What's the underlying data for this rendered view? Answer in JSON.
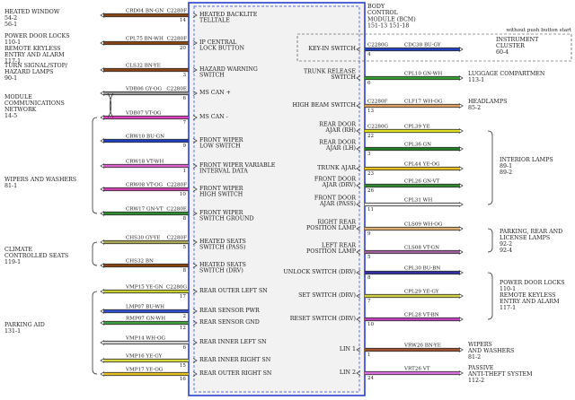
{
  "bcm": {
    "title_lines": [
      "BODY",
      "CONTROL",
      "MODULE (BCM)",
      "151-13  151-18"
    ],
    "note": "without push button start"
  },
  "left_modules": [
    {
      "id": "heated-window",
      "lines": [
        "HEATED WINDOW",
        "54-2",
        "56-1"
      ]
    },
    {
      "id": "power-door-locks-remote",
      "lines": [
        "POWER DOOR LOCKS",
        "110-1",
        "REMOTE KEYLESS",
        "ENTRY AND ALARM",
        "117-1"
      ]
    },
    {
      "id": "turn-signal",
      "lines": [
        "TURN SIGNAL/STOP/",
        "HAZARD LAMPS",
        "90-1"
      ]
    },
    {
      "id": "module-comm",
      "lines": [
        "MODULE",
        "COMMUNICATIONS",
        "NETWORK",
        "14-5"
      ]
    },
    {
      "id": "wipers-washers",
      "lines": [
        "WIPERS AND WASHERS",
        "81-1"
      ]
    },
    {
      "id": "climate-seats",
      "lines": [
        "CLIMATE",
        "CONTROLLED SEATS",
        "119-1"
      ]
    },
    {
      "id": "parking-aid",
      "lines": [
        "PARKING AID",
        "131-1"
      ]
    }
  ],
  "left_pins": [
    {
      "wire": "CRD04",
      "color": "BN-GN",
      "conn": "C2280F",
      "pin": "14",
      "label": [
        "HEATED BACKLITE",
        "TELLTALE"
      ],
      "hex": "#8B4513"
    },
    {
      "wire": "CPL75",
      "color": "BN-WH",
      "conn": "C2280F",
      "pin": "20",
      "label": [
        "IP CENTRAL",
        "LOCK BUTTON"
      ],
      "hex": "#8B4513"
    },
    {
      "wire": "CLS32",
      "color": "BN-YE",
      "conn": "",
      "pin": "3",
      "label": [
        "HAZARD WARNING",
        "SWITCH"
      ],
      "hex": "#8B4513"
    },
    {
      "wire": "VDB06",
      "color": "GY-OG",
      "conn": "C2280E",
      "pin": "6",
      "label": [
        "MS CAN +"
      ],
      "hex": "#9a9a9a"
    },
    {
      "wire": "VDB07",
      "color": "VT-OG",
      "conn": "",
      "pin": "7",
      "label": [
        "MS CAN -"
      ],
      "hex": "#e040c0"
    },
    {
      "wire": "CRW10",
      "color": "BU-GN",
      "conn": "",
      "pin": "9",
      "label": [
        "FRONT WIPER",
        "LOW SWITCH"
      ],
      "hex": "#1f3fbf"
    },
    {
      "wire": "CRW18",
      "color": "VT-WH",
      "conn": "",
      "pin": "1",
      "label": [
        "FRONT WIPER VARIABLE",
        "INTERVAL DATA"
      ],
      "hex": "#e060d0"
    },
    {
      "wire": "CRW08",
      "color": "VT-OG",
      "conn": "C2280F",
      "pin": "10",
      "label": [
        "FRONT WIPER",
        "HIGH SWITCH"
      ],
      "hex": "#d040b0"
    },
    {
      "wire": "CRW17",
      "color": "GN-VT",
      "conn": "C2280E",
      "pin": "8",
      "label": [
        "FRONT WIPER",
        "SWITCH GROUND"
      ],
      "hex": "#2e8b2e"
    },
    {
      "wire": "CHS30",
      "color": "GY-YE",
      "conn": "C2280F",
      "pin": "5",
      "label": [
        "HEATED SEATS",
        "SWITCH (PASS)"
      ],
      "hex": "#aaaa55"
    },
    {
      "wire": "CHS32",
      "color": "BN",
      "conn": "",
      "pin": "8",
      "label": [
        "HEATED SEATS",
        "SWITCH (DRV)"
      ],
      "hex": "#8B4513"
    },
    {
      "wire": "VMP15",
      "color": "YE-GN",
      "conn": "C2280G",
      "pin": "17",
      "label": [
        "REAR OUTER LEFT SN"
      ],
      "hex": "#c8d030"
    },
    {
      "wire": "LMP07",
      "color": "BU-WH",
      "conn": "",
      "pin": "2",
      "label": [
        "REAR SENSOR PWR"
      ],
      "hex": "#3050d0"
    },
    {
      "wire": "RMP07",
      "color": "GN-WH",
      "conn": "",
      "pin": "12",
      "label": [
        "REAR SENSOR GND"
      ],
      "hex": "#40a040"
    },
    {
      "wire": "VMP14",
      "color": "WH-OG",
      "conn": "",
      "pin": "6",
      "label": [
        "REAR INNER LEFT SN"
      ],
      "hex": "#d0d0d0"
    },
    {
      "wire": "VMP16",
      "color": "YE-GY",
      "conn": "",
      "pin": "15",
      "label": [
        "REAR INNER RIGHT SN"
      ],
      "hex": "#d8d840"
    },
    {
      "wire": "VMP17",
      "color": "YE-OG",
      "conn": "",
      "pin": "16",
      "label": [
        "REAR OUTER RIGHT SN"
      ],
      "hex": "#e8c020"
    }
  ],
  "right_pins": [
    {
      "wire": "CDC30",
      "color": "BU-GY",
      "conn": "C2280G",
      "pin": "4",
      "label": [
        "KEY-IN SWITCH"
      ],
      "hex": "#2040c0"
    },
    {
      "wire": "CPL10",
      "color": "GN-WH",
      "conn": "",
      "pin": "6",
      "label": [
        "TRUNK RELEASE",
        "SWITCH"
      ],
      "hex": "#30a030"
    },
    {
      "wire": "CLF17",
      "color": "WH-OG",
      "conn": "C2280F",
      "pin": "13",
      "label": [
        "HIGH BEAM SWITCH"
      ],
      "hex": "#e0a060"
    },
    {
      "wire": "CPL39",
      "color": "YE",
      "conn": "C2280G",
      "pin": "22",
      "label": [
        "REAR DOOR",
        "AJAR (RH)"
      ],
      "hex": "#e0e020"
    },
    {
      "wire": "CPL36",
      "color": "GN",
      "conn": "",
      "pin": "3",
      "label": [
        "REAR DOOR",
        "AJAR (LH)"
      ],
      "hex": "#208020"
    },
    {
      "wire": "CPL44",
      "color": "YE-OG",
      "conn": "",
      "pin": "23",
      "label": [
        "TRUNK AJAR"
      ],
      "hex": "#e8c020"
    },
    {
      "wire": "CPL26",
      "color": "GN-VT",
      "conn": "",
      "pin": "26",
      "label": [
        "FRONT DOOR",
        "AJAR (DRV)"
      ],
      "hex": "#2e8b2e"
    },
    {
      "wire": "CPL31",
      "color": "WH",
      "conn": "",
      "pin": "11",
      "label": [
        "FRONT DOOR",
        "AJAR (PASS)"
      ],
      "hex": "#e8e8e8"
    },
    {
      "wire": "CLS09",
      "color": "WH-OG",
      "conn": "",
      "pin": "9",
      "label": [
        "RIGHT REAR",
        "POSITION LAMP"
      ],
      "hex": "#e0b070"
    },
    {
      "wire": "CLS08",
      "color": "VT-GN",
      "conn": "",
      "pin": "5",
      "label": [
        "LEFT REAR",
        "POSITION LAMP"
      ],
      "hex": "#a060a0"
    },
    {
      "wire": "CPL30",
      "color": "BU-BN",
      "conn": "",
      "pin": "8",
      "label": [
        "UNLOCK SWITCH (DRV)"
      ],
      "hex": "#3030a0"
    },
    {
      "wire": "CPL29",
      "color": "YE-GY",
      "conn": "",
      "pin": "7",
      "label": [
        "SET SWITCH (DRV)"
      ],
      "hex": "#d0d040"
    },
    {
      "wire": "CPL28",
      "color": "VT-BN",
      "conn": "",
      "pin": "10",
      "label": [
        "RESET SWITCH (DRV)"
      ],
      "hex": "#c040c0"
    },
    {
      "wire": "VRW26",
      "color": "BN-YE",
      "conn": "",
      "pin": "1",
      "label": [
        "LIN 1"
      ],
      "hex": "#a0522d"
    },
    {
      "wire": "VRT26",
      "color": "VT",
      "conn": "",
      "pin": "24",
      "label": [
        "LIN 2"
      ],
      "hex": "#e070e0"
    }
  ],
  "right_modules": [
    {
      "id": "instrument-cluster",
      "lines": [
        "INSTRUMENT",
        "CLUSTER",
        "60-4"
      ]
    },
    {
      "id": "luggage",
      "lines": [
        "LUGGAGE COMPARTMEN",
        "113-1"
      ]
    },
    {
      "id": "headlamps",
      "lines": [
        "HEADLAMPS",
        "85-2"
      ]
    },
    {
      "id": "interior-lamps",
      "lines": [
        "INTERIOR LAMPS",
        "89-1",
        "89-2"
      ]
    },
    {
      "id": "parking-lamps",
      "lines": [
        "PARKING, REAR AND",
        "LICENSE LAMPS",
        "92-2",
        "92-4"
      ]
    },
    {
      "id": "power-door-locks-r",
      "lines": [
        "POWER DOOR LOCKS",
        "110-1",
        "REMOTE KEYLESS",
        "ENTRY AND ALARM",
        "117-1"
      ]
    },
    {
      "id": "wipers-washers-r",
      "lines": [
        "WIPERS",
        "AND WASHERS",
        "81-2"
      ]
    },
    {
      "id": "anti-theft",
      "lines": [
        "PASSIVE",
        "ANTI-THEFT SYSTEM",
        "112-2"
      ]
    }
  ]
}
